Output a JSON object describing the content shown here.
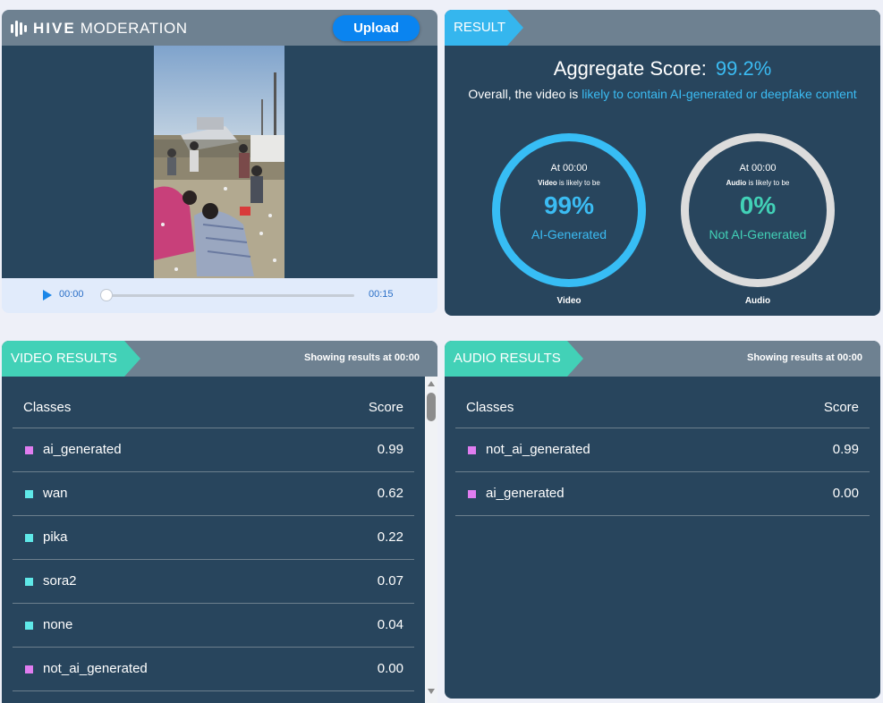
{
  "player": {
    "brand_bold": "HIVE",
    "brand_light": "MODERATION",
    "upload_label": "Upload",
    "current_time": "00:00",
    "duration": "00:15",
    "progress": 0
  },
  "result": {
    "tag": "RESULT",
    "aggregate_label": "Aggregate Score:",
    "aggregate_value": "99.2%",
    "overall_prefix": "Overall, the video is",
    "overall_highlight": "likely to contain AI-generated or deepfake content",
    "video_ring": {
      "at": "At 00:00",
      "subject": "Video",
      "likely": "is likely to be",
      "percent": "99%",
      "label": "AI-Generated",
      "caption": "Video",
      "color": "#37bdf5"
    },
    "audio_ring": {
      "at": "At 00:00",
      "subject": "Audio",
      "likely": "is likely to be",
      "percent": "0%",
      "label": "Not AI-Generated",
      "caption": "Audio",
      "color": "#dcdcdc"
    }
  },
  "video_results": {
    "tag": "VIDEO RESULTS",
    "showing_prefix": "Showing results at",
    "showing_time": "00:00",
    "col_classes": "Classes",
    "col_score": "Score",
    "rows": [
      {
        "name": "ai_generated",
        "score": "0.99",
        "color": "#e07df0"
      },
      {
        "name": "wan",
        "score": "0.62",
        "color": "#5fe8e8"
      },
      {
        "name": "pika",
        "score": "0.22",
        "color": "#5fe8e8"
      },
      {
        "name": "sora2",
        "score": "0.07",
        "color": "#5fe8e8"
      },
      {
        "name": "none",
        "score": "0.04",
        "color": "#5fe8e8"
      },
      {
        "name": "not_ai_generated",
        "score": "0.00",
        "color": "#e07df0"
      }
    ]
  },
  "audio_results": {
    "tag": "AUDIO RESULTS",
    "showing_prefix": "Showing results at",
    "showing_time": "00:00",
    "col_classes": "Classes",
    "col_score": "Score",
    "rows": [
      {
        "name": "not_ai_generated",
        "score": "0.99",
        "color": "#e07df0"
      },
      {
        "name": "ai_generated",
        "score": "0.00",
        "color": "#e07df0"
      }
    ]
  }
}
